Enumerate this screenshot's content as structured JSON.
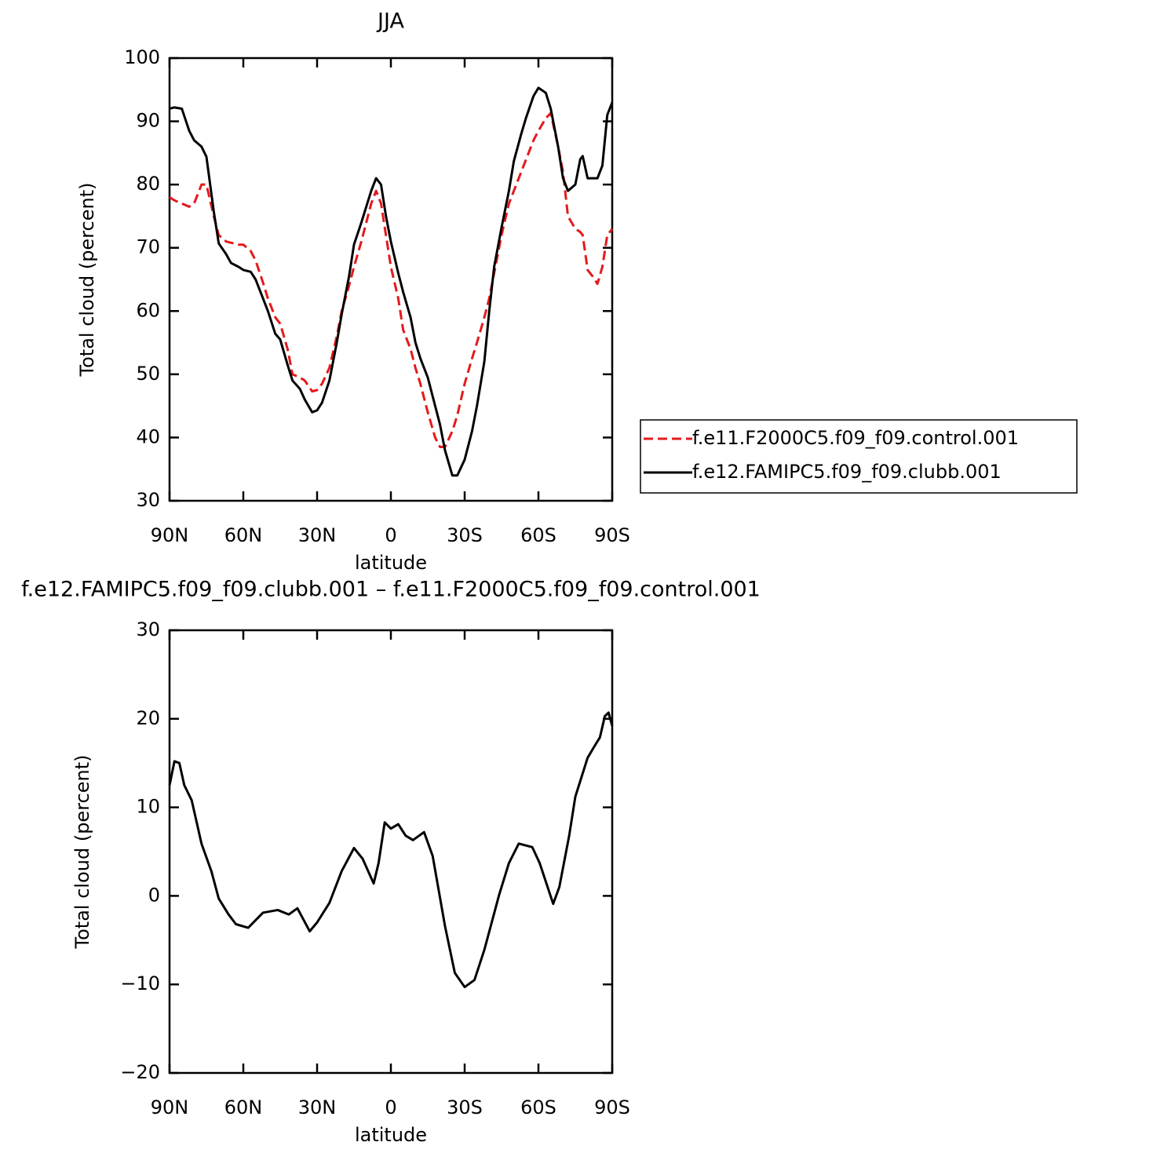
{
  "chart_data": [
    {
      "type": "line",
      "title": "JJA",
      "xlabel": "latitude",
      "ylabel": "Total cloud (percent)",
      "x": [
        90,
        88,
        85,
        82,
        80,
        77,
        75,
        72,
        70,
        67,
        65,
        62,
        60,
        57,
        55,
        52,
        50,
        47,
        45,
        42,
        40,
        37,
        35,
        32,
        30,
        28,
        25,
        22,
        20,
        17,
        15,
        12,
        10,
        8,
        6,
        4,
        2,
        0,
        -3,
        -5,
        -8,
        -10,
        -12,
        -15,
        -18,
        -20,
        -22,
        -25,
        -27,
        -30,
        -33,
        -35,
        -38,
        -40,
        -42,
        -45,
        -48,
        -50,
        -53,
        -55,
        -58,
        -60,
        -63,
        -65,
        -68,
        -70,
        -72,
        -75,
        -77,
        -78,
        -80,
        -82,
        -84,
        -86,
        -88,
        -90
      ],
      "series": [
        {
          "name": "f.e11.F2000C5.f09_f09.control.001",
          "color": "#e31a1c",
          "style": "dashed",
          "values": [
            78,
            77.5,
            77,
            76.5,
            77,
            80,
            80,
            75,
            72,
            71,
            70.8,
            70.5,
            70.5,
            69.5,
            68,
            64.5,
            62,
            59,
            58,
            54,
            50,
            49.5,
            49,
            47.3,
            47.5,
            48.5,
            51,
            56,
            60,
            64,
            67,
            71,
            74,
            77,
            79,
            77,
            72,
            67,
            62,
            57,
            54,
            51,
            48.5,
            44,
            40,
            38.5,
            38.5,
            41,
            43.5,
            48.5,
            52.5,
            55,
            59,
            62,
            66,
            72,
            77,
            79,
            82,
            84,
            87,
            88.5,
            90.5,
            91.3,
            86,
            82,
            75,
            73,
            72.5,
            72,
            66.5,
            65.5,
            64.3,
            67,
            72,
            73
          ]
        },
        {
          "name": "f.e12.FAMIPC5.f09_f09.clubb.001",
          "color": "#000000",
          "style": "solid",
          "values": [
            92,
            92.2,
            92,
            88.5,
            87,
            86,
            84.4,
            75.7,
            70.7,
            69,
            67.6,
            67,
            66.5,
            66.2,
            65,
            62,
            60,
            56.4,
            55.5,
            51.5,
            49,
            47.7,
            46,
            44,
            44.3,
            45.5,
            49,
            55,
            59.5,
            65.5,
            70.5,
            74,
            76.5,
            79,
            81,
            80,
            75,
            71,
            66,
            63,
            59,
            55,
            52.5,
            49.5,
            45,
            42,
            38,
            34,
            34,
            36.5,
            41,
            45,
            52,
            60,
            67,
            73.2,
            79,
            83.7,
            88,
            90.6,
            94,
            95.3,
            94.5,
            92,
            86,
            81,
            79,
            80,
            84,
            84.5,
            81,
            81,
            81,
            83,
            91,
            93
          ]
        }
      ],
      "xlim": [
        90,
        -90
      ],
      "xticks": [
        {
          "value": 90,
          "label": "90N"
        },
        {
          "value": 60,
          "label": "60N"
        },
        {
          "value": 30,
          "label": "30N"
        },
        0,
        {
          "value": -30,
          "label": "30S"
        },
        {
          "value": -60,
          "label": "60S"
        },
        {
          "value": -90,
          "label": "90S"
        }
      ],
      "ylim": [
        30,
        100
      ],
      "yticks": [
        30,
        40,
        50,
        60,
        70,
        80,
        90,
        100
      ],
      "grid": false,
      "legend": "right"
    },
    {
      "type": "line",
      "title": "f.e12.FAMIPC5.f09_f09.clubb.001 – f.e11.F2000C5.f09_f09.control.001",
      "xlabel": "latitude",
      "ylabel": "Total cloud (percent)",
      "x": [
        90,
        88,
        86,
        84,
        81,
        77,
        73,
        70,
        66,
        63,
        58,
        52,
        46,
        41.5,
        38,
        33,
        30,
        25,
        20,
        15,
        11.5,
        7,
        5,
        2.5,
        0,
        -3,
        -6,
        -9,
        -13.5,
        -17,
        -22,
        -26,
        -30,
        -34,
        -38,
        -44,
        -48,
        -52,
        -57.5,
        -60.5,
        -66,
        -68.5,
        -72.5,
        -75,
        -77.5,
        -80,
        -83,
        -85,
        -87,
        -88.5,
        -90
      ],
      "series": [
        {
          "color": "#000000",
          "style": "solid",
          "values": [
            12.5,
            15.2,
            15,
            12.5,
            10.8,
            5.9,
            2.8,
            -0.3,
            -2.1,
            -3.2,
            -3.6,
            -1.9,
            -1.6,
            -2.1,
            -1.4,
            -4,
            -3,
            -0.8,
            2.8,
            5.4,
            4.2,
            1.4,
            3.7,
            8.3,
            7.6,
            8.1,
            6.8,
            6.3,
            7.2,
            4.5,
            -3.4,
            -8.7,
            -10.3,
            -9.5,
            -6.1,
            0.1,
            3.7,
            5.9,
            5.5,
            3.7,
            -0.9,
            1,
            6.8,
            11.2,
            13.4,
            15.6,
            17,
            17.9,
            20.3,
            20.7,
            19.2
          ]
        }
      ],
      "xlim": [
        90,
        -90
      ],
      "xticks": [
        {
          "value": 90,
          "label": "90N"
        },
        {
          "value": 60,
          "label": "60N"
        },
        {
          "value": 30,
          "label": "30N"
        },
        0,
        {
          "value": -30,
          "label": "30S"
        },
        {
          "value": -60,
          "label": "60S"
        },
        {
          "value": -90,
          "label": "90S"
        }
      ],
      "ylim": [
        -20,
        30
      ],
      "yticks": [
        {
          "value": -20,
          "label": "−20"
        },
        {
          "value": -10,
          "label": "−10"
        },
        0,
        10,
        20,
        30
      ],
      "grid": false
    }
  ]
}
